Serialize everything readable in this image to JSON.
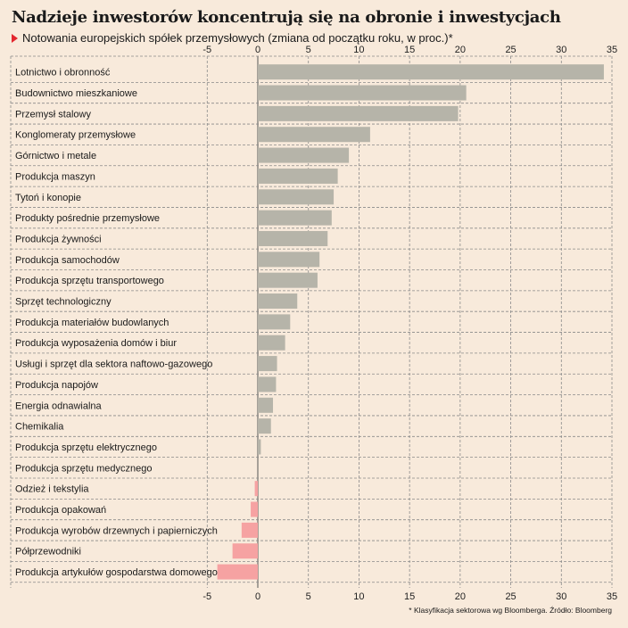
{
  "header": {
    "title": "Nadzieje inwestorów koncentrują się na obronie i inwestycjach",
    "subtitle": "Notowania europejskich spółek przemysłowych (zmiana od początku roku, w proc.)*"
  },
  "footnote": "* Klasyfikacja sektorowa wg Bloomberga. Źródło: Bloomberg",
  "colors": {
    "positive": "#b6b4a9",
    "negative": "#f6a2a2",
    "accent": "#e3262e",
    "background": "#f8eadb"
  },
  "chart_data": {
    "type": "bar",
    "orientation": "horizontal",
    "title": "Nadzieje inwestorów koncentrują się na obronie i inwestycjach",
    "subtitle": "Notowania europejskich spółek przemysłowych (zmiana od początku roku, w proc.)*",
    "xlim": [
      -5,
      35
    ],
    "ticks": [
      -5,
      0,
      5,
      10,
      15,
      20,
      25,
      30,
      35
    ],
    "tick_labels": [
      "-5",
      "0",
      "5",
      "10",
      "15",
      "20",
      "25",
      "30",
      "35"
    ],
    "grid": true,
    "axis_labels_position": "top-and-bottom",
    "categories": [
      "Lotnictwo i obronność",
      "Budownictwo mieszkaniowe",
      "Przemysł stalowy",
      "Konglomeraty przemysłowe",
      "Górnictwo i metale",
      "Produkcja maszyn",
      "Tytoń i konopie",
      "Produkty pośrednie przemysłowe",
      "Produkcja żywności",
      "Produkcja samochodów",
      "Produkcja sprzętu transportowego",
      "Sprzęt technologiczny",
      "Produkcja materiałów budowlanych",
      "Produkcja wyposażenia domów i biur",
      "Usługi i sprzęt dla sektora naftowo-gazowego",
      "Produkcja napojów",
      "Energia odnawialna",
      "Chemikalia",
      "Produkcja sprzętu elektrycznego",
      "Produkcja sprzętu medycznego",
      "Odzież i tekstylia",
      "Produkcja opakowań",
      "Produkcja wyrobów drzewnych i papierniczych",
      "Półprzewodniki",
      "Produkcja artykułów gospodarstwa domowego"
    ],
    "values": [
      34.2,
      20.6,
      19.8,
      11.1,
      9.0,
      7.9,
      7.5,
      7.3,
      6.9,
      6.1,
      5.9,
      3.9,
      3.2,
      2.7,
      1.9,
      1.8,
      1.5,
      1.3,
      0.3,
      0.0,
      -0.3,
      -0.7,
      -1.6,
      -2.5,
      -4.0
    ]
  }
}
